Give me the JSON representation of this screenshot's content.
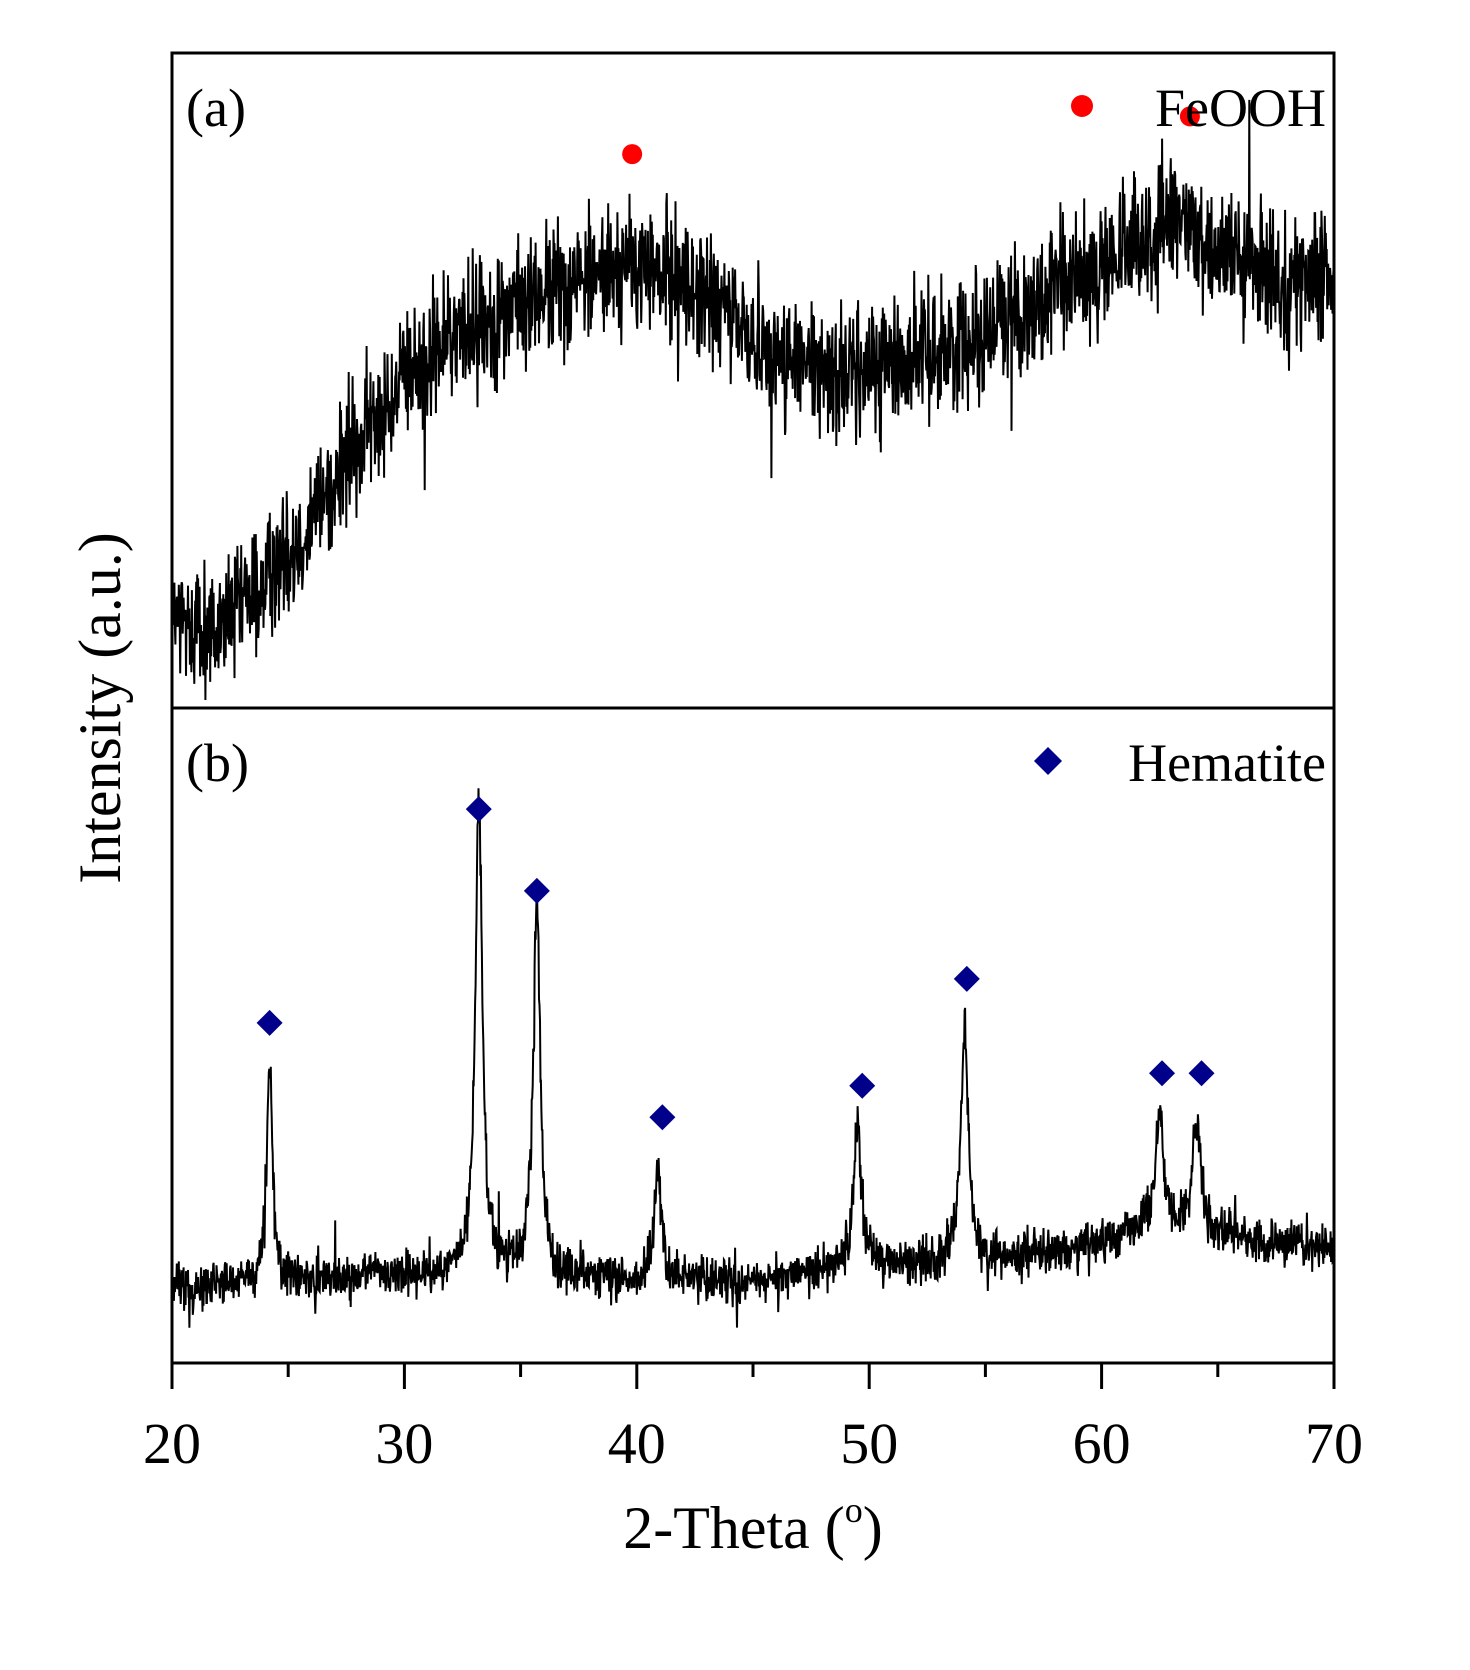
{
  "chart_data": {
    "type": "line",
    "figure": "stacked XRD patterns",
    "xlabel": "2-Theta (",
    "xlabel_superscript": "o",
    "xlabel_suffix": ")",
    "ylabel": "Intensity (a.u.)",
    "xlim": [
      20,
      70
    ],
    "xticks": [
      "20",
      "30",
      "40",
      "50",
      "60",
      "70"
    ],
    "xtick_values": [
      20,
      30,
      40,
      50,
      60,
      70
    ],
    "minor_tick_step": 5,
    "grid": false,
    "panels": [
      {
        "id": "a",
        "label": "(a)",
        "series_name": "FeOOH",
        "ylim": [
          0,
          100
        ],
        "noise_amplitude": 14,
        "color": "#000000",
        "marker": "circle",
        "marker_color": "#ff0000",
        "baseline": [
          [
            20,
            12
          ],
          [
            22,
            10
          ],
          [
            24,
            18
          ],
          [
            26,
            28
          ],
          [
            28,
            40
          ],
          [
            30,
            50
          ],
          [
            32,
            57
          ],
          [
            35,
            62
          ],
          [
            38,
            67
          ],
          [
            40,
            68
          ],
          [
            42,
            66
          ],
          [
            44,
            60
          ],
          [
            46,
            54
          ],
          [
            48,
            51
          ],
          [
            50,
            52
          ],
          [
            52,
            54
          ],
          [
            55,
            58
          ],
          [
            58,
            64
          ],
          [
            61,
            70
          ],
          [
            63,
            75
          ],
          [
            64,
            74
          ],
          [
            66,
            68
          ],
          [
            68,
            66
          ],
          [
            70,
            65
          ]
        ],
        "peaks": [],
        "markers": [
          {
            "x": 39.8,
            "y": 86
          },
          {
            "x": 63.8,
            "y": 92
          }
        ],
        "legend": {
          "label": "FeOOH",
          "symbol": "circle",
          "color": "#ff0000",
          "position": "top-right"
        }
      },
      {
        "id": "b",
        "label": "(b)",
        "series_name": "Hematite",
        "ylim": [
          0,
          100
        ],
        "noise_amplitude": 5,
        "color": "#000000",
        "marker": "diamond",
        "marker_color": "#00008b",
        "baseline": [
          [
            20,
            10
          ],
          [
            25,
            11
          ],
          [
            30,
            12
          ],
          [
            35,
            12
          ],
          [
            40,
            11
          ],
          [
            45,
            11
          ],
          [
            50,
            13
          ],
          [
            55,
            14
          ],
          [
            60,
            17
          ],
          [
            62,
            19
          ],
          [
            65,
            18
          ],
          [
            70,
            16
          ]
        ],
        "peaks": [
          {
            "x": 24.2,
            "height": 34,
            "width": 0.15
          },
          {
            "x": 33.2,
            "height": 76,
            "width": 0.18
          },
          {
            "x": 35.7,
            "height": 60,
            "width": 0.18
          },
          {
            "x": 40.9,
            "height": 18,
            "width": 0.18
          },
          {
            "x": 49.5,
            "height": 24,
            "width": 0.2
          },
          {
            "x": 54.1,
            "height": 38,
            "width": 0.2
          },
          {
            "x": 62.5,
            "height": 19,
            "width": 0.22
          },
          {
            "x": 64.1,
            "height": 18,
            "width": 0.22
          }
        ],
        "markers": [
          {
            "x": 24.2,
            "y": 52
          },
          {
            "x": 33.2,
            "y": 86
          },
          {
            "x": 35.7,
            "y": 73
          },
          {
            "x": 41.1,
            "y": 37
          },
          {
            "x": 49.7,
            "y": 42
          },
          {
            "x": 54.2,
            "y": 59
          },
          {
            "x": 62.6,
            "y": 44
          },
          {
            "x": 64.3,
            "y": 44
          }
        ],
        "legend": {
          "label": "Hematite",
          "symbol": "diamond",
          "color": "#00008b",
          "position": "top-right"
        }
      }
    ]
  }
}
